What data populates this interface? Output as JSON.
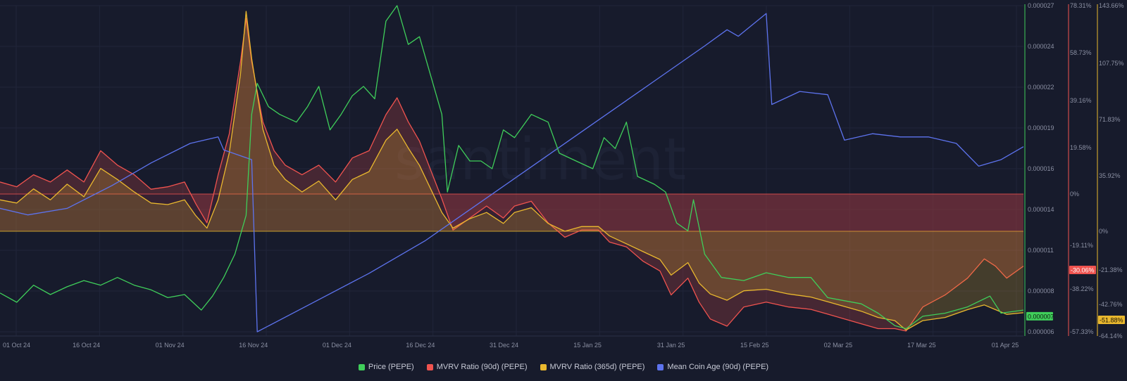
{
  "watermark": "santiment",
  "legend": [
    {
      "name": "Price (PEPE)",
      "color": "#3fce5a"
    },
    {
      "name": "MVRV Ratio (90d) (PEPE)",
      "color": "#f0534f"
    },
    {
      "name": "MVRV Ratio (365d) (PEPE)",
      "color": "#e9b82e"
    },
    {
      "name": "Mean Coin Age (90d) (PEPE)",
      "color": "#5d73ee"
    }
  ],
  "chart_data": {
    "type": "line",
    "x_ticks": [
      "01 Oct 24",
      "16 Oct 24",
      "01 Nov 24",
      "16 Nov 24",
      "01 Dec 24",
      "16 Dec 24",
      "31 Dec 24",
      "15 Jan 25",
      "31 Jan 25",
      "15 Feb 25",
      "02 Mar 25",
      "17 Mar 25",
      "01 Apr 25"
    ],
    "x_range": [
      "2024-09-30",
      "2025-04-01"
    ],
    "price_axis": {
      "ticks": [
        "0.000027",
        "0.000024",
        "0.000022",
        "0.000019",
        "0.000016",
        "0.000014",
        "0.000011",
        "0.000008",
        "0.000006"
      ],
      "current": "0.000007",
      "color": "#3fce5a"
    },
    "mvrv90_axis": {
      "ticks": [
        "78.31%",
        "58.73%",
        "39.16%",
        "19.58%",
        "0%",
        "-19.11%",
        "-38.22%",
        "-57.33%"
      ],
      "current": "-30.06%",
      "color": "#f0534f"
    },
    "mvrv365_axis": {
      "ticks": [
        "143.66%",
        "107.75%",
        "71.83%",
        "35.92%",
        "0%",
        "-21.38%",
        "-42.76%",
        "-64.14%"
      ],
      "current": "-51.88%",
      "color": "#e9b82e"
    },
    "series": [
      {
        "name": "Price (PEPE)",
        "color": "#3fce5a",
        "points": [
          [
            "2024-09-30",
            8.5e-06
          ],
          [
            "2024-10-03",
            7.9e-06
          ],
          [
            "2024-10-06",
            9e-06
          ],
          [
            "2024-10-09",
            8.4e-06
          ],
          [
            "2024-10-12",
            8.9e-06
          ],
          [
            "2024-10-15",
            9.3e-06
          ],
          [
            "2024-10-18",
            9e-06
          ],
          [
            "2024-10-21",
            9.5e-06
          ],
          [
            "2024-10-24",
            9e-06
          ],
          [
            "2024-10-27",
            8.7e-06
          ],
          [
            "2024-10-30",
            8.2e-06
          ],
          [
            "2024-11-02",
            8.4e-06
          ],
          [
            "2024-11-05",
            7.4e-06
          ],
          [
            "2024-11-07",
            8.3e-06
          ],
          [
            "2024-11-09",
            9.5e-06
          ],
          [
            "2024-11-11",
            1.1e-05
          ],
          [
            "2024-11-13",
            1.35e-05
          ],
          [
            "2024-11-14",
            2e-05
          ],
          [
            "2024-11-15",
            2.2e-05
          ],
          [
            "2024-11-17",
            2.05e-05
          ],
          [
            "2024-11-19",
            2e-05
          ],
          [
            "2024-11-22",
            1.95e-05
          ],
          [
            "2024-11-24",
            2.05e-05
          ],
          [
            "2024-11-26",
            2.18e-05
          ],
          [
            "2024-11-28",
            1.9e-05
          ],
          [
            "2024-11-30",
            2e-05
          ],
          [
            "2024-12-02",
            2.12e-05
          ],
          [
            "2024-12-04",
            2.18e-05
          ],
          [
            "2024-12-06",
            2.1e-05
          ],
          [
            "2024-12-08",
            2.6e-05
          ],
          [
            "2024-12-10",
            2.7e-05
          ],
          [
            "2024-12-12",
            2.45e-05
          ],
          [
            "2024-12-14",
            2.5e-05
          ],
          [
            "2024-12-16",
            2.25e-05
          ],
          [
            "2024-12-18",
            2e-05
          ],
          [
            "2024-12-19",
            1.5e-05
          ],
          [
            "2024-12-21",
            1.8e-05
          ],
          [
            "2024-12-23",
            1.7e-05
          ],
          [
            "2024-12-25",
            1.7e-05
          ],
          [
            "2024-12-27",
            1.65e-05
          ],
          [
            "2024-12-29",
            1.9e-05
          ],
          [
            "2024-12-31",
            1.85e-05
          ],
          [
            "2025-01-03",
            2e-05
          ],
          [
            "2025-01-06",
            1.95e-05
          ],
          [
            "2025-01-08",
            1.75e-05
          ],
          [
            "2025-01-11",
            1.7e-05
          ],
          [
            "2025-01-14",
            1.65e-05
          ],
          [
            "2025-01-16",
            1.85e-05
          ],
          [
            "2025-01-18",
            1.78e-05
          ],
          [
            "2025-01-20",
            1.95e-05
          ],
          [
            "2025-01-22",
            1.6e-05
          ],
          [
            "2025-01-25",
            1.55e-05
          ],
          [
            "2025-01-27",
            1.5e-05
          ],
          [
            "2025-01-29",
            1.3e-05
          ],
          [
            "2025-01-31",
            1.25e-05
          ],
          [
            "2025-02-01",
            1.45e-05
          ],
          [
            "2025-02-03",
            1.1e-05
          ],
          [
            "2025-02-06",
            9.5e-06
          ],
          [
            "2025-02-10",
            9.3e-06
          ],
          [
            "2025-02-14",
            9.8e-06
          ],
          [
            "2025-02-18",
            9.5e-06
          ],
          [
            "2025-02-22",
            9.5e-06
          ],
          [
            "2025-02-25",
            8.2e-06
          ],
          [
            "2025-02-28",
            8e-06
          ],
          [
            "2025-03-03",
            7.8e-06
          ],
          [
            "2025-03-06",
            7.2e-06
          ],
          [
            "2025-03-09",
            6.4e-06
          ],
          [
            "2025-03-11",
            6.2e-06
          ],
          [
            "2025-03-14",
            7e-06
          ],
          [
            "2025-03-18",
            7.2e-06
          ],
          [
            "2025-03-22",
            7.6e-06
          ],
          [
            "2025-03-26",
            8.3e-06
          ],
          [
            "2025-03-28",
            7.2e-06
          ],
          [
            "2025-04-01",
            7.4e-06
          ]
        ]
      },
      {
        "name": "MVRV Ratio (90d) (PEPE)",
        "color": "#f0534f",
        "points": [
          [
            "2024-09-30",
            5
          ],
          [
            "2024-10-03",
            3
          ],
          [
            "2024-10-06",
            8
          ],
          [
            "2024-10-09",
            5
          ],
          [
            "2024-10-12",
            10
          ],
          [
            "2024-10-15",
            5
          ],
          [
            "2024-10-18",
            18
          ],
          [
            "2024-10-21",
            12
          ],
          [
            "2024-10-24",
            8
          ],
          [
            "2024-10-27",
            2
          ],
          [
            "2024-10-30",
            3
          ],
          [
            "2024-11-02",
            5
          ],
          [
            "2024-11-04",
            -4
          ],
          [
            "2024-11-06",
            -12
          ],
          [
            "2024-11-08",
            8
          ],
          [
            "2024-11-10",
            25
          ],
          [
            "2024-11-12",
            55
          ],
          [
            "2024-11-13",
            73
          ],
          [
            "2024-11-14",
            55
          ],
          [
            "2024-11-16",
            30
          ],
          [
            "2024-11-18",
            18
          ],
          [
            "2024-11-20",
            12
          ],
          [
            "2024-11-23",
            8
          ],
          [
            "2024-11-26",
            12
          ],
          [
            "2024-11-29",
            5
          ],
          [
            "2024-12-02",
            15
          ],
          [
            "2024-12-05",
            18
          ],
          [
            "2024-12-08",
            33
          ],
          [
            "2024-12-10",
            40
          ],
          [
            "2024-12-12",
            30
          ],
          [
            "2024-12-14",
            22
          ],
          [
            "2024-12-16",
            10
          ],
          [
            "2024-12-18",
            -2
          ],
          [
            "2024-12-20",
            -15
          ],
          [
            "2024-12-23",
            -10
          ],
          [
            "2024-12-26",
            -5
          ],
          [
            "2024-12-29",
            -10
          ],
          [
            "2024-12-31",
            -5
          ],
          [
            "2025-01-03",
            -3
          ],
          [
            "2025-01-06",
            -12
          ],
          [
            "2025-01-09",
            -18
          ],
          [
            "2025-01-12",
            -15
          ],
          [
            "2025-01-15",
            -15
          ],
          [
            "2025-01-17",
            -20
          ],
          [
            "2025-01-20",
            -22
          ],
          [
            "2025-01-23",
            -28
          ],
          [
            "2025-01-26",
            -32
          ],
          [
            "2025-01-28",
            -42
          ],
          [
            "2025-01-31",
            -35
          ],
          [
            "2025-02-02",
            -45
          ],
          [
            "2025-02-04",
            -52
          ],
          [
            "2025-02-07",
            -55
          ],
          [
            "2025-02-10",
            -47
          ],
          [
            "2025-02-14",
            -45
          ],
          [
            "2025-02-18",
            -47
          ],
          [
            "2025-02-22",
            -48
          ],
          [
            "2025-02-25",
            -50
          ],
          [
            "2025-02-28",
            -52
          ],
          [
            "2025-03-03",
            -54
          ],
          [
            "2025-03-06",
            -56
          ],
          [
            "2025-03-09",
            -56
          ],
          [
            "2025-03-11",
            -57
          ],
          [
            "2025-03-14",
            -47
          ],
          [
            "2025-03-18",
            -42
          ],
          [
            "2025-03-22",
            -35
          ],
          [
            "2025-03-25",
            -27
          ],
          [
            "2025-03-27",
            -30
          ],
          [
            "2025-03-29",
            -35
          ],
          [
            "2025-04-01",
            -30
          ]
        ]
      },
      {
        "name": "MVRV Ratio (365d) (PEPE)",
        "color": "#e9b82e",
        "points": [
          [
            "2024-09-30",
            20
          ],
          [
            "2024-10-03",
            18
          ],
          [
            "2024-10-06",
            27
          ],
          [
            "2024-10-09",
            20
          ],
          [
            "2024-10-12",
            30
          ],
          [
            "2024-10-15",
            22
          ],
          [
            "2024-10-18",
            40
          ],
          [
            "2024-10-21",
            33
          ],
          [
            "2024-10-24",
            25
          ],
          [
            "2024-10-27",
            18
          ],
          [
            "2024-10-30",
            17
          ],
          [
            "2024-11-02",
            20
          ],
          [
            "2024-11-04",
            10
          ],
          [
            "2024-11-06",
            2
          ],
          [
            "2024-11-08",
            20
          ],
          [
            "2024-11-10",
            50
          ],
          [
            "2024-11-12",
            100
          ],
          [
            "2024-11-13",
            140
          ],
          [
            "2024-11-14",
            110
          ],
          [
            "2024-11-16",
            65
          ],
          [
            "2024-11-18",
            42
          ],
          [
            "2024-11-20",
            33
          ],
          [
            "2024-11-23",
            25
          ],
          [
            "2024-11-26",
            32
          ],
          [
            "2024-11-29",
            20
          ],
          [
            "2024-12-02",
            33
          ],
          [
            "2024-12-05",
            38
          ],
          [
            "2024-12-08",
            58
          ],
          [
            "2024-12-10",
            65
          ],
          [
            "2024-12-12",
            53
          ],
          [
            "2024-12-14",
            42
          ],
          [
            "2024-12-16",
            27
          ],
          [
            "2024-12-18",
            12
          ],
          [
            "2024-12-20",
            2
          ],
          [
            "2024-12-23",
            8
          ],
          [
            "2024-12-26",
            12
          ],
          [
            "2024-12-29",
            5
          ],
          [
            "2024-12-31",
            12
          ],
          [
            "2025-01-03",
            15
          ],
          [
            "2025-01-06",
            5
          ],
          [
            "2025-01-09",
            0
          ],
          [
            "2025-01-12",
            3
          ],
          [
            "2025-01-15",
            3
          ],
          [
            "2025-01-17",
            -3
          ],
          [
            "2025-01-20",
            -8
          ],
          [
            "2025-01-23",
            -13
          ],
          [
            "2025-01-26",
            -18
          ],
          [
            "2025-01-28",
            -28
          ],
          [
            "2025-01-31",
            -20
          ],
          [
            "2025-02-02",
            -33
          ],
          [
            "2025-02-04",
            -40
          ],
          [
            "2025-02-07",
            -44
          ],
          [
            "2025-02-10",
            -38
          ],
          [
            "2025-02-14",
            -37
          ],
          [
            "2025-02-18",
            -40
          ],
          [
            "2025-02-22",
            -42
          ],
          [
            "2025-02-25",
            -45
          ],
          [
            "2025-02-28",
            -48
          ],
          [
            "2025-03-03",
            -51
          ],
          [
            "2025-03-06",
            -55
          ],
          [
            "2025-03-09",
            -57
          ],
          [
            "2025-03-11",
            -63
          ],
          [
            "2025-03-14",
            -57
          ],
          [
            "2025-03-18",
            -55
          ],
          [
            "2025-03-22",
            -50
          ],
          [
            "2025-03-25",
            -47
          ],
          [
            "2025-03-27",
            -50
          ],
          [
            "2025-03-29",
            -53
          ],
          [
            "2025-04-01",
            -52
          ]
        ]
      },
      {
        "name": "Mean Coin Age (90d) (PEPE)",
        "color": "#5d73ee",
        "points": [
          [
            "2024-09-30",
            0.38
          ],
          [
            "2024-10-05",
            0.36
          ],
          [
            "2024-10-12",
            0.38
          ],
          [
            "2024-10-20",
            0.45
          ],
          [
            "2024-10-27",
            0.52
          ],
          [
            "2024-11-03",
            0.58
          ],
          [
            "2024-11-08",
            0.6
          ],
          [
            "2024-11-09",
            0.56
          ],
          [
            "2024-11-14",
            0.53
          ],
          [
            "2024-11-15",
            0.0
          ],
          [
            "2024-11-25",
            0.09
          ],
          [
            "2024-12-05",
            0.18
          ],
          [
            "2024-12-15",
            0.28
          ],
          [
            "2024-12-25",
            0.4
          ],
          [
            "2025-01-04",
            0.52
          ],
          [
            "2025-01-14",
            0.64
          ],
          [
            "2025-01-24",
            0.76
          ],
          [
            "2025-02-03",
            0.88
          ],
          [
            "2025-02-07",
            0.93
          ],
          [
            "2025-02-09",
            0.91
          ],
          [
            "2025-02-14",
            0.98
          ],
          [
            "2025-02-15",
            0.7
          ],
          [
            "2025-02-20",
            0.74
          ],
          [
            "2025-02-25",
            0.73
          ],
          [
            "2025-02-28",
            0.59
          ],
          [
            "2025-03-05",
            0.61
          ],
          [
            "2025-03-10",
            0.6
          ],
          [
            "2025-03-15",
            0.6
          ],
          [
            "2025-03-20",
            0.58
          ],
          [
            "2025-03-24",
            0.51
          ],
          [
            "2025-03-28",
            0.53
          ],
          [
            "2025-04-01",
            0.57
          ]
        ]
      }
    ]
  }
}
